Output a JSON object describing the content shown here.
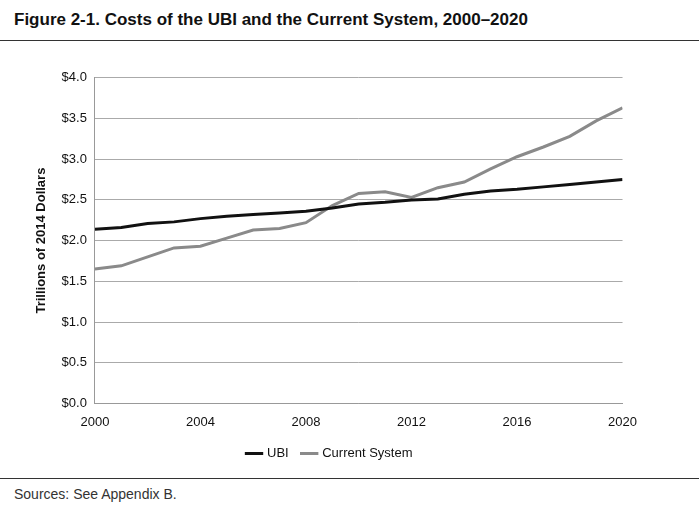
{
  "chart_data": {
    "type": "line",
    "title": "Figure 2-1. Costs of the UBI and the Current System, 2000–2020",
    "source": "Sources: See Appendix B.",
    "y_label": "Trillions of 2014 Dollars",
    "x": [
      2000,
      2001,
      2002,
      2003,
      2004,
      2005,
      2006,
      2007,
      2008,
      2009,
      2010,
      2011,
      2012,
      2013,
      2014,
      2015,
      2016,
      2017,
      2018,
      2019,
      2020
    ],
    "series": [
      {
        "name": "UBI",
        "color": "#111111",
        "values": [
          2.14,
          2.16,
          2.21,
          2.23,
          2.27,
          2.3,
          2.32,
          2.34,
          2.36,
          2.4,
          2.45,
          2.47,
          2.5,
          2.51,
          2.57,
          2.61,
          2.63,
          2.66,
          2.69,
          2.72,
          2.75
        ]
      },
      {
        "name": "Current System",
        "color": "#8a8a8a",
        "values": [
          1.65,
          1.69,
          1.8,
          1.91,
          1.93,
          2.03,
          2.13,
          2.15,
          2.22,
          2.43,
          2.58,
          2.6,
          2.53,
          2.65,
          2.72,
          2.88,
          3.03,
          3.15,
          3.28,
          3.47,
          3.63
        ]
      }
    ],
    "xlim": [
      2000,
      2020
    ],
    "xticks": [
      2000,
      2004,
      2008,
      2012,
      2016,
      2020
    ],
    "ylim": [
      0,
      4
    ],
    "yticks": [
      {
        "value": 0,
        "label": "$0.0"
      },
      {
        "value": 0.5,
        "label": "$0.5"
      },
      {
        "value": 1,
        "label": "$1.0"
      },
      {
        "value": 1.5,
        "label": "$1.5"
      },
      {
        "value": 2,
        "label": "$2.0"
      },
      {
        "value": 2.5,
        "label": "$2.5"
      },
      {
        "value": 3,
        "label": "$3.0"
      },
      {
        "value": 3.5,
        "label": "$3.5"
      },
      {
        "value": 4,
        "label": "$4.0"
      }
    ],
    "grid": true,
    "legend": "bottom"
  }
}
